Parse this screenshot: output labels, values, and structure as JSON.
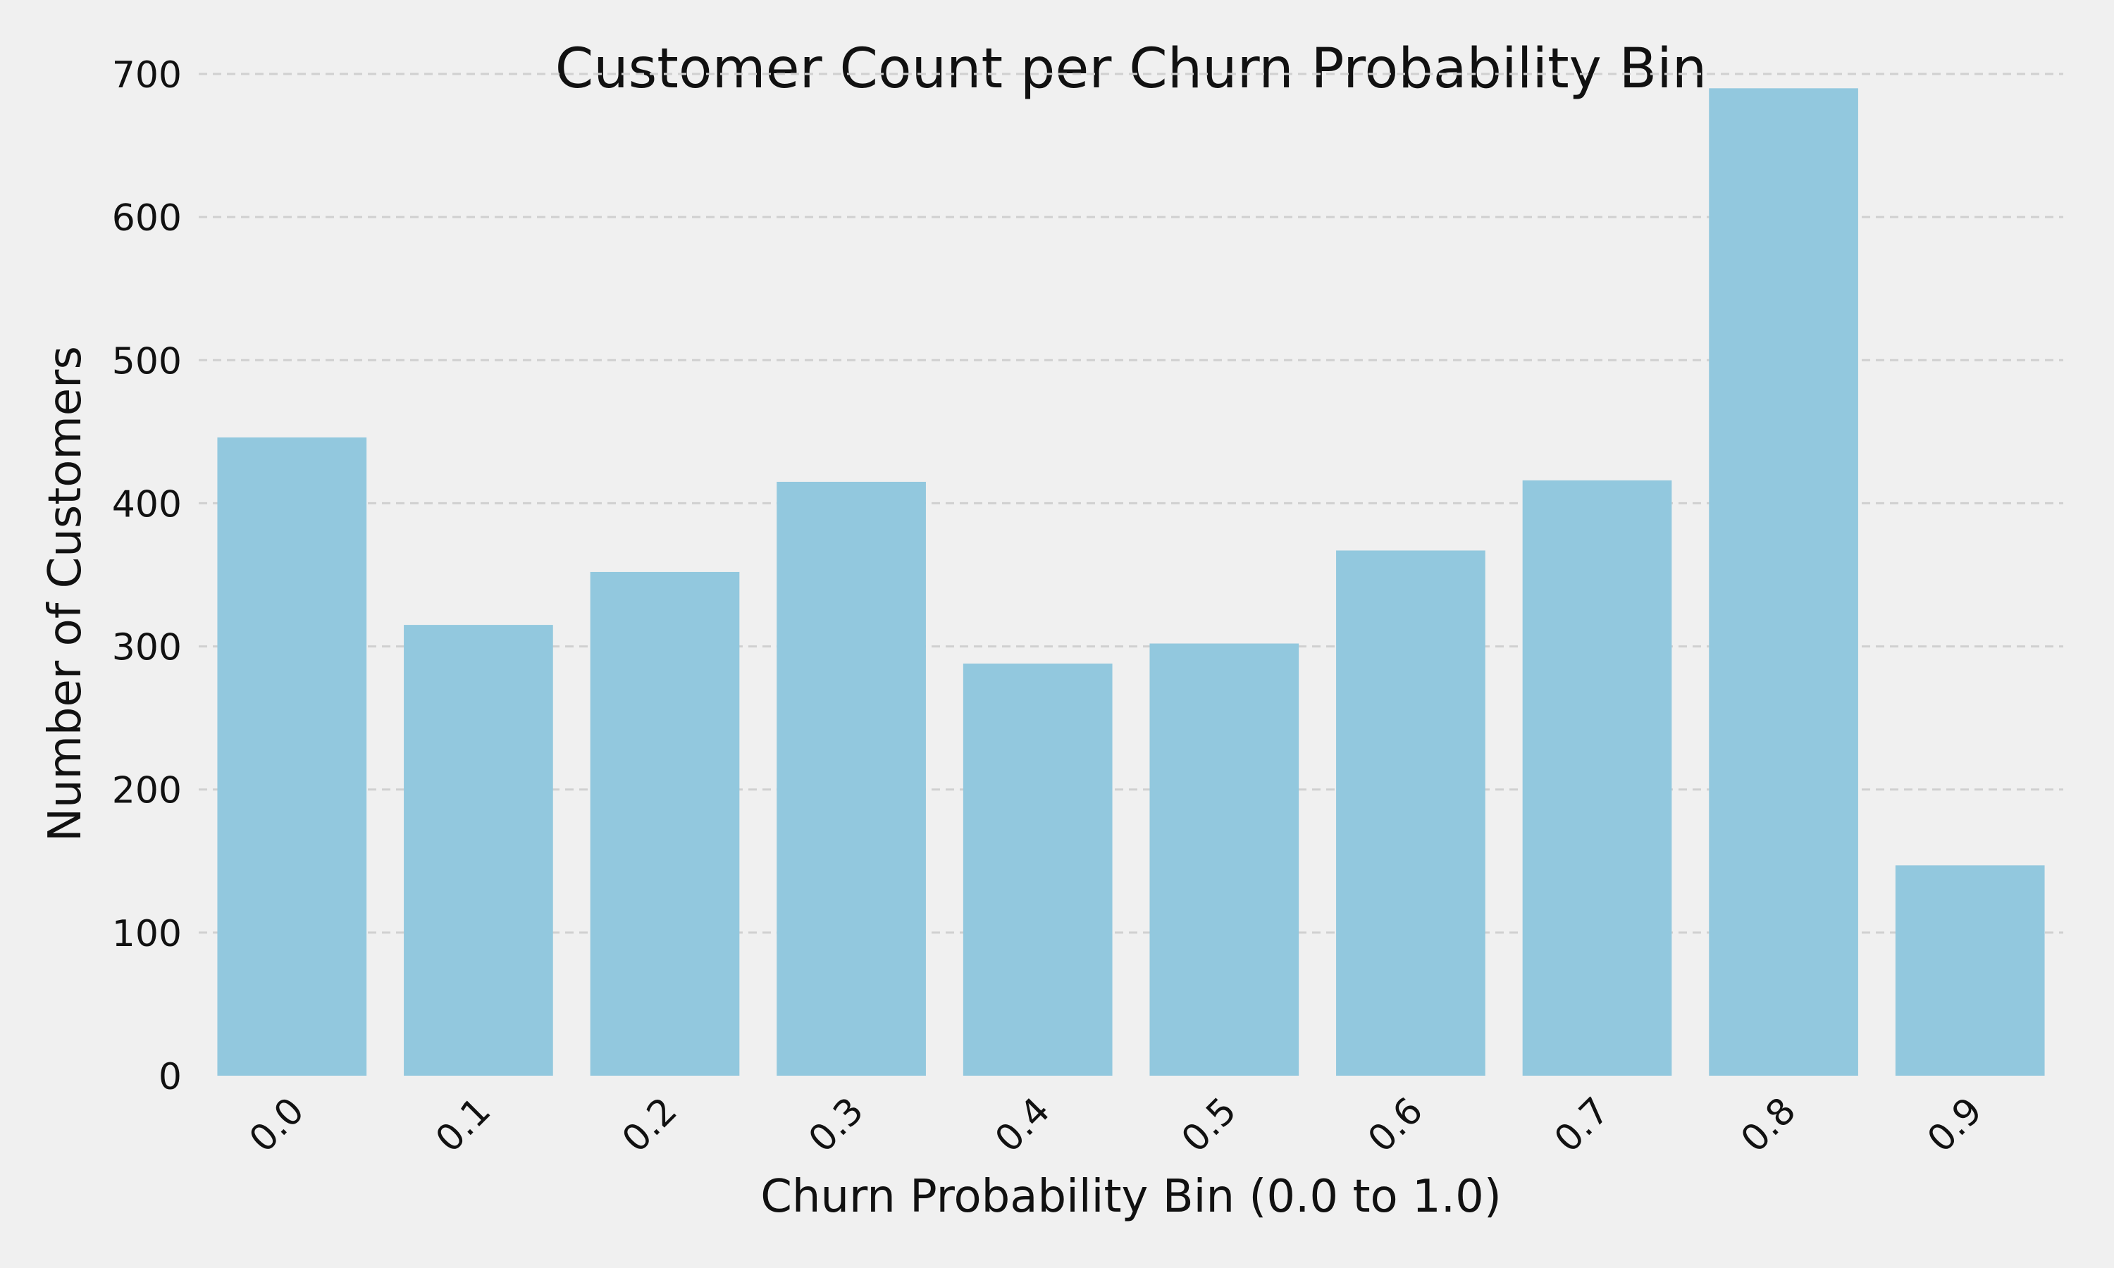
{
  "chart_data": {
    "type": "bar",
    "title": "Customer Count per Churn Probability Bin",
    "xlabel": "Churn Probability Bin (0.0 to 1.0)",
    "ylabel": "Number of Customers",
    "categories": [
      "0.0",
      "0.1",
      "0.2",
      "0.3",
      "0.4",
      "0.5",
      "0.6",
      "0.7",
      "0.8",
      "0.9"
    ],
    "values": [
      446,
      315,
      352,
      415,
      288,
      302,
      367,
      416,
      690,
      147
    ],
    "ylim": [
      0,
      700
    ],
    "yticks": [
      0,
      100,
      200,
      300,
      400,
      500,
      600,
      700
    ],
    "ytick_labels": [
      "0",
      "100",
      "200",
      "300",
      "400",
      "500",
      "600",
      "700"
    ],
    "grid": "y",
    "bar_color": "#92c8de",
    "background_color": "#f0f0f0"
  }
}
